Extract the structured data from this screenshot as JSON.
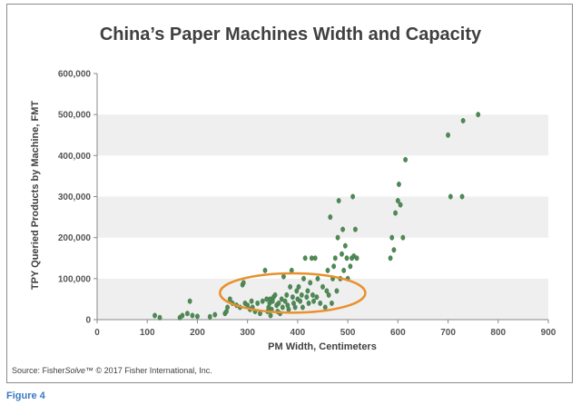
{
  "figure_label": "Figure 4",
  "source": {
    "prefix": "Source: Fisher",
    "italic": "Solve",
    "suffix": "™ © 2017 Fisher International, Inc."
  },
  "colors": {
    "point": "#4e8a55",
    "highlight_ellipse": "#e8912d",
    "band": "#efefef"
  },
  "chart_data": {
    "type": "scatter",
    "title": "China’s Paper Machines Width and Capacity",
    "xlabel": "PM Width, Centimeters",
    "ylabel": "TPY Queried Products by Machine, FMT",
    "xlim": [
      0,
      900
    ],
    "ylim": [
      0,
      600000
    ],
    "xticks": [
      "0",
      "100",
      "200",
      "300",
      "400",
      "500",
      "600",
      "700",
      "800",
      "900"
    ],
    "yticks": [
      "0",
      "100,000",
      "200,000",
      "300,000",
      "400,000",
      "500,000",
      "600,000"
    ],
    "grid": "horizontal alternating bands",
    "legend": "none",
    "highlight": {
      "shape": "ellipse",
      "center": [
        390,
        65000
      ],
      "radius_x": 145,
      "radius_y": 48000
    },
    "points": [
      [
        115,
        10000
      ],
      [
        125,
        5000
      ],
      [
        165,
        5000
      ],
      [
        170,
        10000
      ],
      [
        180,
        15000
      ],
      [
        185,
        45000
      ],
      [
        190,
        10000
      ],
      [
        200,
        8000
      ],
      [
        225,
        7000
      ],
      [
        235,
        12000
      ],
      [
        255,
        15000
      ],
      [
        258,
        20000
      ],
      [
        260,
        30000
      ],
      [
        265,
        50000
      ],
      [
        270,
        40000
      ],
      [
        278,
        35000
      ],
      [
        285,
        30000
      ],
      [
        290,
        85000
      ],
      [
        292,
        90000
      ],
      [
        295,
        40000
      ],
      [
        300,
        35000
      ],
      [
        305,
        25000
      ],
      [
        308,
        45000
      ],
      [
        310,
        30000
      ],
      [
        315,
        20000
      ],
      [
        320,
        40000
      ],
      [
        325,
        15000
      ],
      [
        330,
        45000
      ],
      [
        335,
        120000
      ],
      [
        338,
        50000
      ],
      [
        340,
        20000
      ],
      [
        342,
        30000
      ],
      [
        344,
        40000
      ],
      [
        345,
        50000
      ],
      [
        346,
        10000
      ],
      [
        348,
        25000
      ],
      [
        350,
        45000
      ],
      [
        352,
        55000
      ],
      [
        355,
        60000
      ],
      [
        358,
        35000
      ],
      [
        360,
        20000
      ],
      [
        362,
        40000
      ],
      [
        365,
        15000
      ],
      [
        368,
        50000
      ],
      [
        370,
        30000
      ],
      [
        372,
        105000
      ],
      [
        375,
        45000
      ],
      [
        378,
        60000
      ],
      [
        380,
        35000
      ],
      [
        382,
        25000
      ],
      [
        385,
        80000
      ],
      [
        388,
        120000
      ],
      [
        390,
        55000
      ],
      [
        392,
        40000
      ],
      [
        395,
        30000
      ],
      [
        398,
        70000
      ],
      [
        400,
        50000
      ],
      [
        402,
        80000
      ],
      [
        405,
        45000
      ],
      [
        408,
        60000
      ],
      [
        410,
        30000
      ],
      [
        412,
        100000
      ],
      [
        415,
        150000
      ],
      [
        418,
        55000
      ],
      [
        420,
        70000
      ],
      [
        422,
        40000
      ],
      [
        425,
        90000
      ],
      [
        428,
        150000
      ],
      [
        430,
        60000
      ],
      [
        432,
        45000
      ],
      [
        435,
        150000
      ],
      [
        438,
        55000
      ],
      [
        440,
        100000
      ],
      [
        445,
        40000
      ],
      [
        450,
        80000
      ],
      [
        455,
        30000
      ],
      [
        458,
        70000
      ],
      [
        460,
        120000
      ],
      [
        462,
        60000
      ],
      [
        465,
        250000
      ],
      [
        468,
        40000
      ],
      [
        470,
        100000
      ],
      [
        472,
        130000
      ],
      [
        475,
        150000
      ],
      [
        478,
        70000
      ],
      [
        480,
        200000
      ],
      [
        482,
        290000
      ],
      [
        485,
        100000
      ],
      [
        488,
        160000
      ],
      [
        490,
        220000
      ],
      [
        492,
        120000
      ],
      [
        495,
        180000
      ],
      [
        498,
        150000
      ],
      [
        500,
        100000
      ],
      [
        505,
        130000
      ],
      [
        508,
        150000
      ],
      [
        510,
        300000
      ],
      [
        512,
        155000
      ],
      [
        515,
        220000
      ],
      [
        518,
        150000
      ],
      [
        585,
        150000
      ],
      [
        588,
        200000
      ],
      [
        592,
        170000
      ],
      [
        595,
        260000
      ],
      [
        600,
        290000
      ],
      [
        602,
        330000
      ],
      [
        605,
        280000
      ],
      [
        610,
        200000
      ],
      [
        615,
        390000
      ],
      [
        700,
        450000
      ],
      [
        705,
        300000
      ],
      [
        728,
        300000
      ],
      [
        730,
        485000
      ],
      [
        760,
        500000
      ]
    ]
  }
}
